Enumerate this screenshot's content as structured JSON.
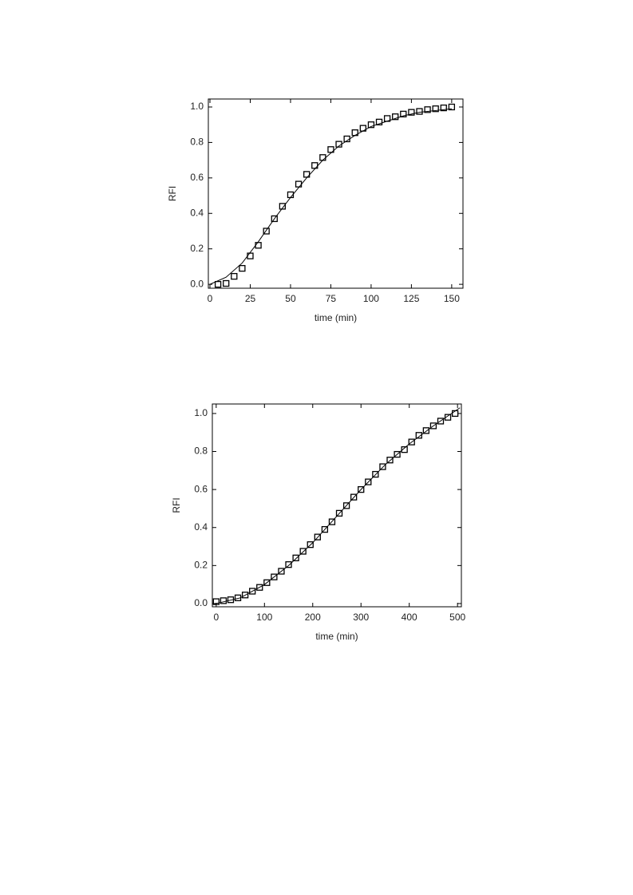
{
  "chart_data": [
    {
      "type": "scatter",
      "xlabel": "time (min)",
      "ylabel": "RFI",
      "xlim": [
        -1,
        157
      ],
      "ylim": [
        -0.022,
        1.045
      ],
      "xticks": [
        0,
        25,
        50,
        75,
        100,
        125,
        150
      ],
      "yticks": [
        {
          "value": 0,
          "label": "0.0"
        },
        0.2,
        0.4,
        0.6,
        0.8,
        {
          "value": 1,
          "label": "1.0"
        }
      ],
      "series": [
        {
          "style": "markers",
          "color": "#000000",
          "x": [
            5,
            10,
            15,
            20,
            25,
            30,
            35,
            40,
            45,
            50,
            55,
            60,
            65,
            70,
            75,
            80,
            85,
            90,
            95,
            100,
            105,
            110,
            115,
            120,
            125,
            130,
            135,
            140,
            145,
            150
          ],
          "values": [
            0.0,
            0.005,
            0.045,
            0.09,
            0.16,
            0.22,
            0.3,
            0.37,
            0.44,
            0.505,
            0.565,
            0.62,
            0.67,
            0.715,
            0.76,
            0.79,
            0.82,
            0.855,
            0.88,
            0.9,
            0.915,
            0.935,
            0.945,
            0.96,
            0.97,
            0.975,
            0.985,
            0.99,
            0.995,
            1.0
          ]
        },
        {
          "style": "line",
          "color": "#000000",
          "x": [
            0,
            10,
            20,
            30,
            40,
            50,
            60,
            70,
            80,
            90,
            100,
            110,
            120,
            130,
            140,
            150
          ],
          "values": [
            0.0,
            0.04,
            0.12,
            0.24,
            0.37,
            0.49,
            0.6,
            0.7,
            0.78,
            0.84,
            0.89,
            0.92,
            0.95,
            0.97,
            0.98,
            0.99
          ]
        }
      ]
    },
    {
      "type": "scatter",
      "xlabel": "time (min)",
      "ylabel": "RFI",
      "xlim": [
        -8,
        508
      ],
      "ylim": [
        -0.017,
        1.05
      ],
      "xticks": [
        0,
        100,
        200,
        300,
        400,
        500
      ],
      "yticks": [
        {
          "value": 0,
          "label": "0.0"
        },
        0.2,
        0.4,
        0.6,
        0.8,
        {
          "value": 1,
          "label": "1.0"
        }
      ],
      "series": [
        {
          "style": "markers",
          "color": "#000000",
          "x": [
            0,
            15,
            30,
            45,
            60,
            75,
            90,
            105,
            120,
            135,
            150,
            165,
            180,
            195,
            210,
            225,
            240,
            255,
            270,
            285,
            300,
            315,
            330,
            345,
            360,
            375,
            390,
            405,
            420,
            435,
            450,
            465,
            480,
            495
          ],
          "values": [
            0.01,
            0.015,
            0.02,
            0.03,
            0.045,
            0.065,
            0.085,
            0.11,
            0.14,
            0.17,
            0.205,
            0.24,
            0.275,
            0.31,
            0.35,
            0.39,
            0.43,
            0.475,
            0.515,
            0.56,
            0.6,
            0.64,
            0.68,
            0.72,
            0.755,
            0.785,
            0.81,
            0.85,
            0.885,
            0.91,
            0.935,
            0.96,
            0.98,
            1.0
          ]
        },
        {
          "style": "line",
          "color": "#000000",
          "x": [
            0,
            50,
            100,
            150,
            200,
            250,
            300,
            350,
            400,
            450,
            505
          ],
          "values": [
            0.0,
            0.03,
            0.1,
            0.2,
            0.32,
            0.46,
            0.6,
            0.73,
            0.84,
            0.935,
            1.03
          ]
        }
      ]
    }
  ]
}
